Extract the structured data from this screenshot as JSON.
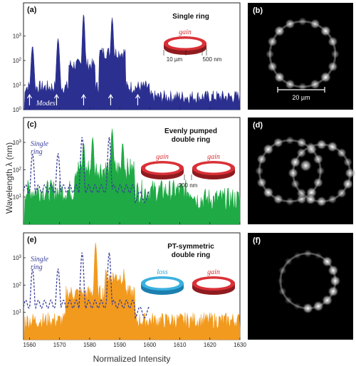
{
  "figure": {
    "y_axis_title": "Wavelength λ (nm)",
    "x_axis_title": "Normalized Intensity"
  },
  "panels": [
    {
      "label": "(a)",
      "title_lines": [
        "Single ring"
      ],
      "ring_labels": [
        "gain"
      ],
      "dims": [
        "10 µm",
        "500 nm"
      ],
      "modes_label": "Modes",
      "color": "#2b2f8f"
    },
    {
      "label": "(c)",
      "title_lines": [
        "Evenly pumped",
        "double ring"
      ],
      "ring_labels": [
        "gain",
        "gain"
      ],
      "gap_label": "200 nm",
      "single_ring_label": [
        "Single",
        "ring"
      ],
      "color": "#1faa45"
    },
    {
      "label": "(e)",
      "title_lines": [
        "PT-symmetric",
        "double ring"
      ],
      "ring_labels": [
        "loss",
        "gain"
      ],
      "single_ring_label": [
        "Single",
        "ring"
      ],
      "color": "#f29a1e"
    }
  ],
  "images": [
    {
      "label": "(b)",
      "scale_label": "20 µm"
    },
    {
      "label": "(d)"
    },
    {
      "label": "(f)"
    }
  ],
  "chart_data": [
    {
      "type": "area",
      "panel": "a",
      "x_ticks": [
        1560,
        1570,
        1580,
        1590,
        1600,
        1610,
        1620,
        1630
      ],
      "y_ticks_exp": [
        0,
        1,
        2,
        3
      ],
      "y_tick_base": "10",
      "ylim_log10": [
        0,
        4
      ],
      "xlim": [
        1558,
        1630
      ],
      "peaks": [
        {
          "x": 1561,
          "log_y": 2.6
        },
        {
          "x": 1569.5,
          "log_y": 2.9
        },
        {
          "x": 1578,
          "log_y": 3.9
        },
        {
          "x": 1587.5,
          "log_y": 3.75
        }
      ],
      "mode_arrows_x": [
        1560,
        1569,
        1578,
        1587,
        1596
      ]
    },
    {
      "type": "area",
      "panel": "c",
      "x_ticks": [
        1560,
        1570,
        1580,
        1590,
        1600,
        1610,
        1620,
        1630
      ],
      "y_ticks_exp": [
        1,
        2,
        3
      ],
      "y_tick_base": "10",
      "ylim_log10": [
        0,
        3.6
      ],
      "xlim": [
        1558,
        1630
      ],
      "peaks": [
        {
          "x": 1578,
          "log_y": 3.0
        },
        {
          "x": 1581,
          "log_y": 3.2
        },
        {
          "x": 1587.5,
          "log_y": 3.5
        },
        {
          "x": 1591,
          "log_y": 3.0
        }
      ],
      "dashed_peaks": [
        {
          "x": 1561,
          "log_y": 2.6
        },
        {
          "x": 1569.5,
          "log_y": 2.6
        },
        {
          "x": 1577.5,
          "log_y": 3.2
        },
        {
          "x": 1586.5,
          "log_y": 3.2
        }
      ]
    },
    {
      "type": "area",
      "panel": "e",
      "x_ticks": [
        1560,
        1570,
        1580,
        1590,
        1600,
        1610,
        1620,
        1630
      ],
      "y_ticks_exp": [
        1,
        2,
        3
      ],
      "y_tick_base": "10",
      "ylim_log10": [
        0,
        3.6
      ],
      "xlim": [
        1558,
        1630
      ],
      "peaks": [
        {
          "x": 1582,
          "log_y": 3.55
        }
      ],
      "dashed_peaks": [
        {
          "x": 1561,
          "log_y": 2.6
        },
        {
          "x": 1569.5,
          "log_y": 2.6
        },
        {
          "x": 1577.5,
          "log_y": 3.2
        },
        {
          "x": 1586.5,
          "log_y": 3.2
        }
      ]
    }
  ]
}
